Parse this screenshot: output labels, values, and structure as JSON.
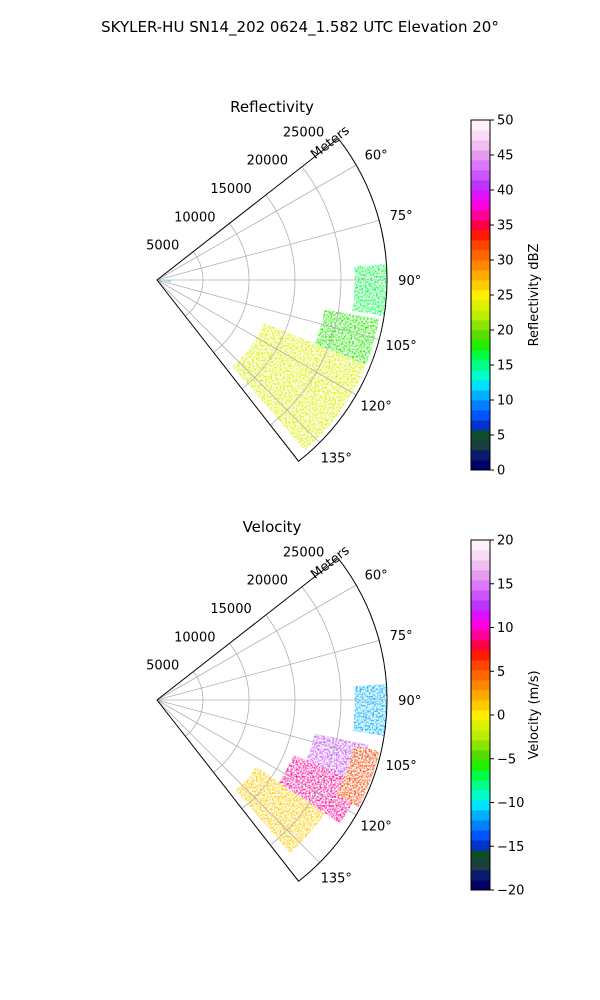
{
  "figure": {
    "title": "SKYLER-HU  SN14_202  0624_1.582 UTC Elevation 20°"
  },
  "chart_data": [
    {
      "type": "heatmap",
      "subtype": "polar-sector",
      "title": "Reflectivity",
      "radial_label": "Meters",
      "radial_ticks": [
        "5000",
        "10000",
        "15000",
        "20000",
        "25000"
      ],
      "radial_tick_values": [
        5000,
        10000,
        15000,
        20000,
        25000
      ],
      "radial_range": [
        0,
        25000
      ],
      "azimuth_ticks": [
        "60°",
        "75°",
        "90°",
        "105°",
        "120°",
        "135°"
      ],
      "azimuth_tick_values": [
        60,
        75,
        90,
        105,
        120,
        135
      ],
      "azimuth_range": [
        52,
        142
      ],
      "grid": true,
      "colorbar": {
        "label": "Reflectivity dBZ",
        "ticks": [
          "0",
          "5",
          "10",
          "15",
          "20",
          "25",
          "30",
          "35",
          "40",
          "45",
          "50"
        ],
        "range": [
          0,
          50
        ]
      },
      "colormap": [
        "#000066",
        "#0a1a6e",
        "#1b3d3d",
        "#0d4d2a",
        "#0033cc",
        "#0055ff",
        "#007fff",
        "#00b0ff",
        "#00e0ff",
        "#00ffc8",
        "#00ff88",
        "#00ff44",
        "#22ee00",
        "#55dd00",
        "#88e600",
        "#bbee00",
        "#ddf000",
        "#ffee00",
        "#ffcc00",
        "#ffaa00",
        "#ff8800",
        "#ff6600",
        "#ff4400",
        "#ff1a00",
        "#ff0044",
        "#ff0099",
        "#ff00dd",
        "#dd11ff",
        "#bb33ff",
        "#cc55ff",
        "#dd77ff",
        "#e69af0",
        "#f0bff2",
        "#fadcf7",
        "#fff0fb"
      ],
      "regions": [
        {
          "name": "main-echo",
          "az_range": [
            112,
            139
          ],
          "range_m": [
            12500,
            24500
          ],
          "value": 24
        },
        {
          "name": "north-echo",
          "az_range": [
            100,
            112
          ],
          "range_m": [
            18500,
            24500
          ],
          "value": 18
        },
        {
          "name": "sparse-echo",
          "az_range": [
            86,
            99
          ],
          "range_m": [
            21500,
            25000
          ],
          "value": 16
        },
        {
          "name": "near-clutter",
          "az_range": [
            91,
            100
          ],
          "range_m": [
            0,
            1500
          ],
          "value": 10
        }
      ]
    },
    {
      "type": "heatmap",
      "subtype": "polar-sector",
      "title": "Velocity",
      "radial_label": "Meters",
      "radial_ticks": [
        "5000",
        "10000",
        "15000",
        "20000",
        "25000"
      ],
      "radial_tick_values": [
        5000,
        10000,
        15000,
        20000,
        25000
      ],
      "radial_range": [
        0,
        25000
      ],
      "azimuth_ticks": [
        "60°",
        "75°",
        "90°",
        "105°",
        "120°",
        "135°"
      ],
      "azimuth_tick_values": [
        60,
        75,
        90,
        105,
        120,
        135
      ],
      "azimuth_range": [
        52,
        142
      ],
      "grid": true,
      "colorbar": {
        "label": "Velocity (m/s)",
        "ticks": [
          "−20",
          "−15",
          "−10",
          "−5",
          "0",
          "5",
          "10",
          "15",
          "20"
        ],
        "range": [
          -20,
          20
        ]
      },
      "colormap": [
        "#000066",
        "#0a1a6e",
        "#1b3d3d",
        "#0d4d2a",
        "#0033cc",
        "#0055ff",
        "#007fff",
        "#00b0ff",
        "#00e0ff",
        "#00ffc8",
        "#00ff88",
        "#00ff44",
        "#22ee00",
        "#55dd00",
        "#88e600",
        "#bbee00",
        "#ddf000",
        "#ffee00",
        "#ffcc00",
        "#ffaa00",
        "#ff8800",
        "#ff6600",
        "#ff4400",
        "#ff1a00",
        "#ff0044",
        "#ff0099",
        "#ff00dd",
        "#dd11ff",
        "#bb33ff",
        "#cc55ff",
        "#dd77ff",
        "#e69af0",
        "#f0bff2",
        "#fadcf7",
        "#fff0fb"
      ],
      "regions": [
        {
          "name": "south-echo",
          "az_range": [
            124,
            139
          ],
          "range_m": [
            13000,
            22000
          ],
          "value": 1
        },
        {
          "name": "central-echo",
          "az_range": [
            112,
            124
          ],
          "range_m": [
            16000,
            24000
          ],
          "value": 9
        },
        {
          "name": "north-echo",
          "az_range": [
            102,
            112
          ],
          "range_m": [
            17500,
            23500
          ],
          "value": 14
        },
        {
          "name": "far-edge",
          "az_range": [
            103,
            118
          ],
          "range_m": [
            22000,
            24800
          ],
          "value": 6
        },
        {
          "name": "sparse-echo",
          "az_range": [
            86,
            99
          ],
          "range_m": [
            21500,
            25000
          ],
          "value": -11
        }
      ]
    }
  ]
}
